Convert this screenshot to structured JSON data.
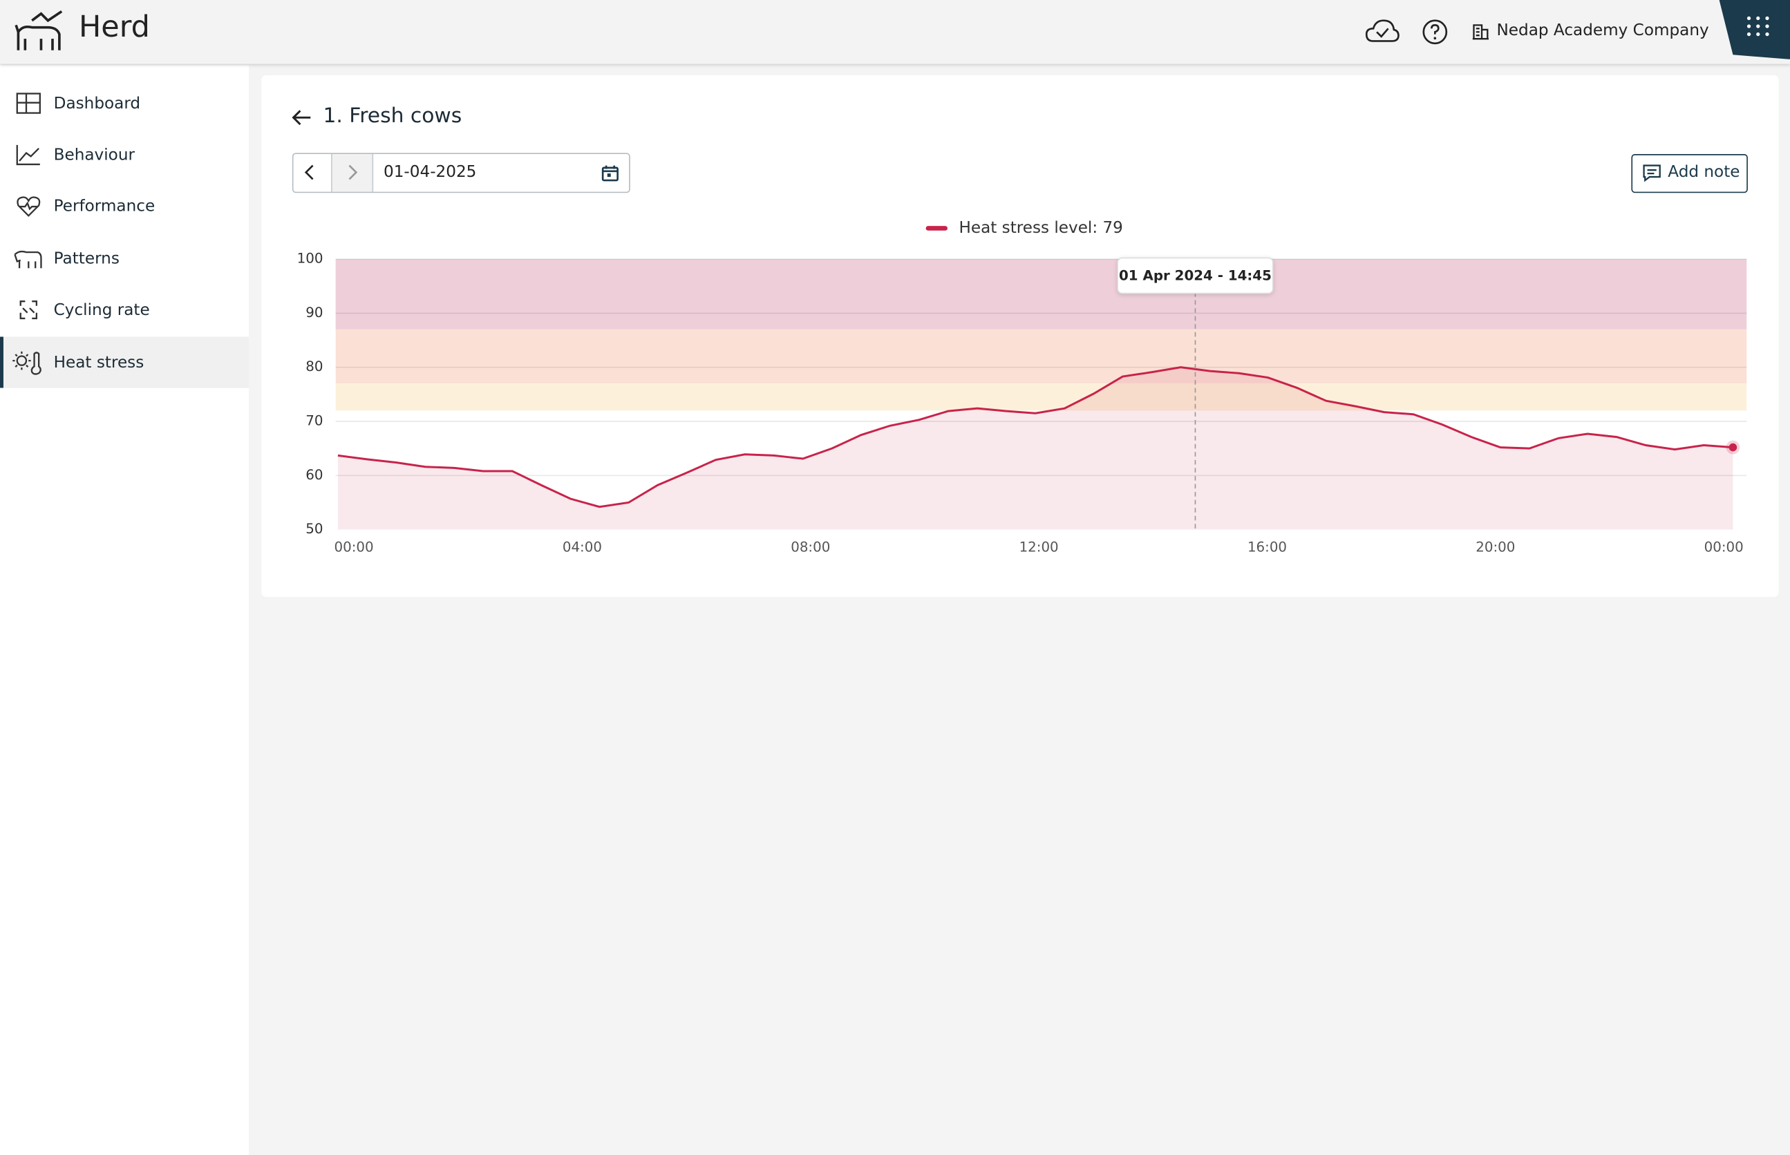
{
  "header": {
    "app_name": "Herd",
    "company": "Nedap Academy Company"
  },
  "nav": [
    "Dashboard",
    "Behaviour",
    "Performance",
    "Patterns",
    "Cycling rate",
    "Heat stress"
  ],
  "page": {
    "title": "1. Fresh cows",
    "date": "01-04-2025",
    "add_note": "Add note"
  },
  "chart_data": {
    "type": "line",
    "x": [
      0,
      0.5,
      1,
      1.5,
      2,
      2.5,
      3,
      3.5,
      4,
      4.5,
      5,
      5.5,
      6,
      6.5,
      7,
      7.5,
      8,
      8.5,
      9,
      9.5,
      10,
      10.5,
      11,
      11.5,
      12,
      12.5,
      13,
      13.5,
      14,
      14.5,
      15,
      15.5,
      16,
      16.5,
      17,
      17.5,
      18,
      18.5,
      19,
      19.5,
      20,
      20.5,
      21,
      21.5,
      22,
      22.5,
      23,
      23.5,
      24
    ],
    "series": [
      {
        "name": "Heat stress level: 79",
        "color": "#c8234a",
        "fill": "rgba(200,35,74,0.1)",
        "values": [
          63.7,
          63,
          62.4,
          61.6,
          61.4,
          60.8,
          60.8,
          58.2,
          55.7,
          54.2,
          55,
          58.2,
          60.5,
          62.9,
          63.9,
          63.7,
          63.1,
          65,
          67.5,
          69.2,
          70.3,
          71.9,
          72.4,
          71.9,
          71.5,
          72.4,
          75.1,
          78.3,
          79.1,
          80,
          79.3,
          78.9,
          78.1,
          76.2,
          73.8,
          72.8,
          71.7,
          71.3,
          69.4,
          67.1,
          65.2,
          65,
          66.9,
          67.7,
          67.1,
          65.6,
          64.8,
          65.6,
          65.2
        ]
      }
    ],
    "xlim": [
      0,
      24
    ],
    "xticks": [
      {
        "value": 0,
        "label": "00:00"
      },
      {
        "value": 4,
        "label": "04:00"
      },
      {
        "value": 8,
        "label": "08:00"
      },
      {
        "value": 12,
        "label": "12:00"
      },
      {
        "value": 16,
        "label": "16:00"
      },
      {
        "value": 20,
        "label": "20:00"
      },
      {
        "value": 24,
        "label": "00:00"
      }
    ],
    "ylim": [
      50,
      100
    ],
    "yticks": [
      50,
      60,
      70,
      80,
      90,
      100
    ],
    "grid": true,
    "bands": [
      {
        "from": 87,
        "to": 100,
        "color": "#eecfd9"
      },
      {
        "from": 77,
        "to": 87,
        "color": "#fbe0d6"
      },
      {
        "from": 72,
        "to": 77,
        "color": "#fdf0da"
      }
    ],
    "annotation": {
      "text": "01 Apr 2024 - 14:45",
      "x": 14.75
    },
    "legend": "top"
  }
}
